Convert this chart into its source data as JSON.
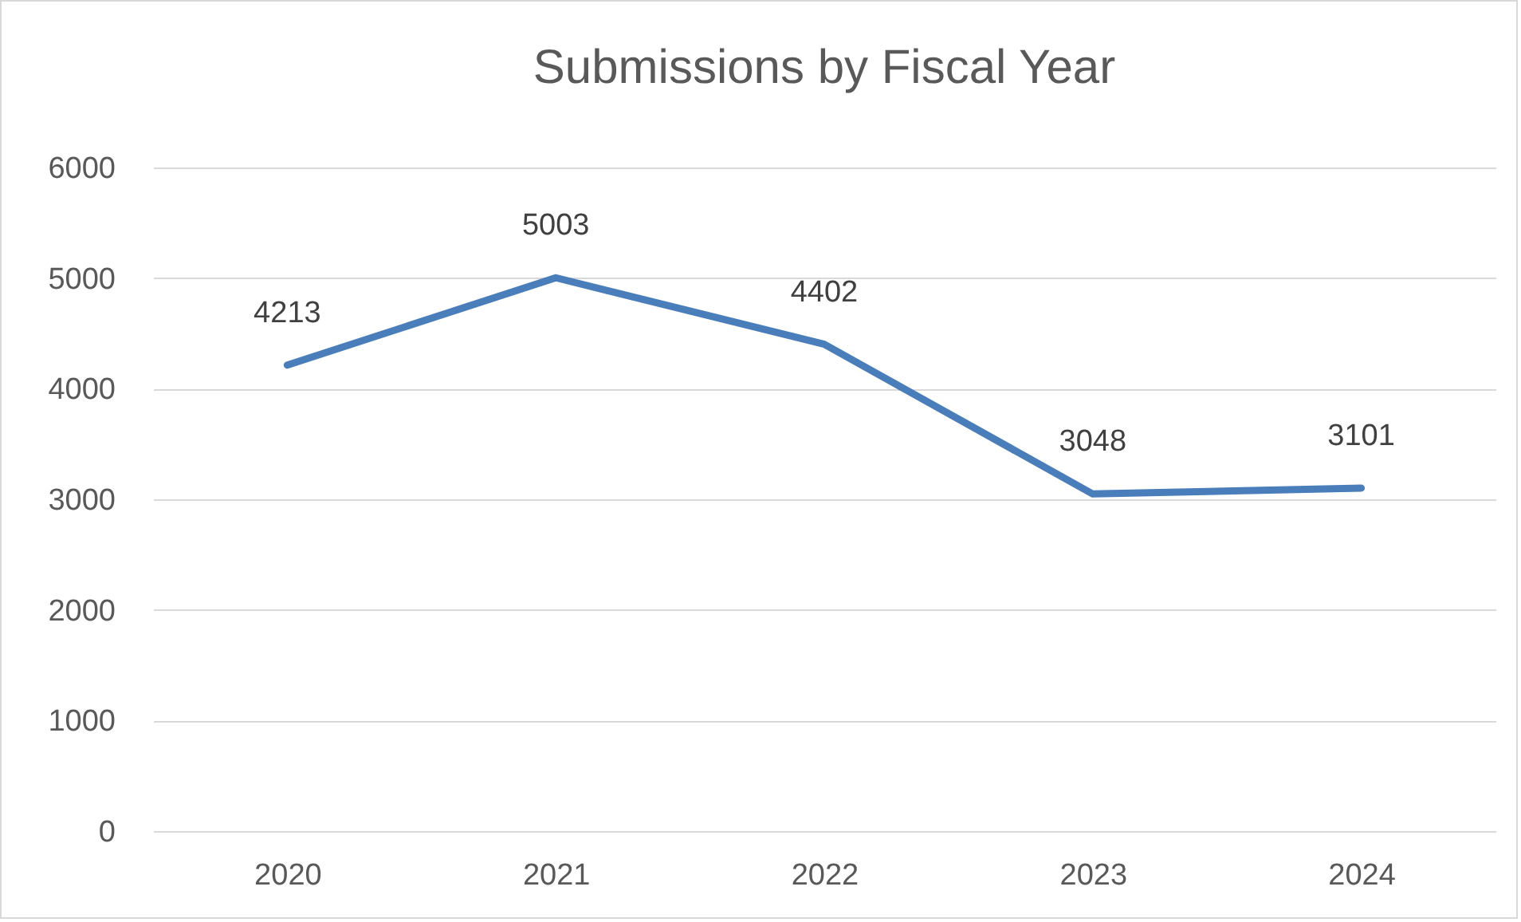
{
  "chart_data": {
    "type": "line",
    "title": "Submissions by Fiscal Year",
    "categories": [
      "2020",
      "2021",
      "2022",
      "2023",
      "2024"
    ],
    "series": [
      {
        "color": "#4a7ebb",
        "values": [
          4213,
          5003,
          4402,
          3048,
          3101
        ]
      }
    ],
    "ylim": [
      0,
      6000
    ],
    "yticks": [
      0,
      1000,
      2000,
      3000,
      4000,
      5000,
      6000
    ],
    "grid": "y",
    "data_labels": true
  }
}
